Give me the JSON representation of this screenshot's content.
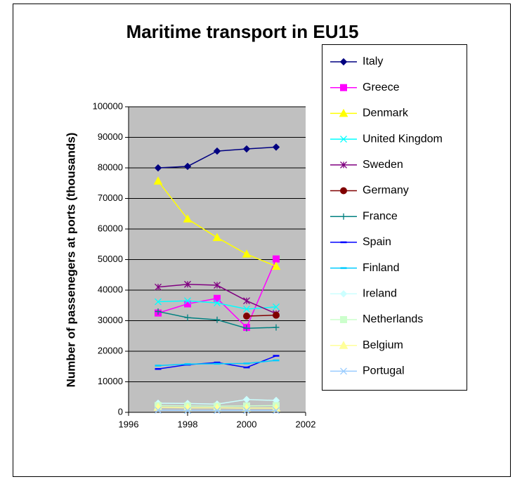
{
  "chart_data": {
    "type": "line",
    "title": "Maritime transport in EU15",
    "y_label": "Number of passenegers at ports (thousands)",
    "x": [
      1997,
      1998,
      1999,
      2000,
      2001
    ],
    "xlim": [
      1996,
      2002
    ],
    "xticks": [
      1996,
      1998,
      2000,
      2002
    ],
    "ylim": [
      0,
      100000
    ],
    "yticks": [
      0,
      10000,
      20000,
      30000,
      40000,
      50000,
      60000,
      70000,
      80000,
      90000,
      100000
    ],
    "grid": true,
    "legend": "right",
    "series": [
      {
        "name": "Italy",
        "color": "#000080",
        "marker": "diamond",
        "values": [
          80000,
          80500,
          85500,
          86200,
          86800
        ]
      },
      {
        "name": "Greece",
        "color": "#FF00FF",
        "marker": "square",
        "values": [
          32500,
          35500,
          37300,
          27800,
          50200
        ]
      },
      {
        "name": "Denmark",
        "color": "#FFFF00",
        "marker": "triangle",
        "values": [
          75700,
          63300,
          57200,
          51800,
          47800
        ]
      },
      {
        "name": "United Kingdom",
        "color": "#00FFFF",
        "marker": "x",
        "values": [
          36200,
          36500,
          35800,
          33800,
          34500
        ]
      },
      {
        "name": "Sweden",
        "color": "#800080",
        "marker": "star",
        "values": [
          41000,
          41900,
          41600,
          36500,
          32300
        ]
      },
      {
        "name": "Germany",
        "color": "#800000",
        "marker": "circle",
        "values": [
          null,
          null,
          null,
          31500,
          31800
        ]
      },
      {
        "name": "France",
        "color": "#008080",
        "marker": "plus",
        "values": [
          33000,
          31000,
          30300,
          27500,
          27800
        ]
      },
      {
        "name": "Spain",
        "color": "#0000FF",
        "marker": "dash",
        "values": [
          14200,
          15600,
          16300,
          14700,
          18500
        ]
      },
      {
        "name": "Finland",
        "color": "#00CCFF",
        "marker": "dash",
        "values": [
          15300,
          15800,
          15900,
          16000,
          17000
        ]
      },
      {
        "name": "Ireland",
        "color": "#CCFFFF",
        "marker": "diamond",
        "values": [
          3000,
          2900,
          2700,
          4200,
          3900
        ]
      },
      {
        "name": "Netherlands",
        "color": "#CCFFCC",
        "marker": "square",
        "values": [
          2200,
          2100,
          2000,
          2100,
          2200
        ]
      },
      {
        "name": "Belgium",
        "color": "#FFFF99",
        "marker": "triangle",
        "values": [
          1700,
          1500,
          1500,
          1400,
          1400
        ]
      },
      {
        "name": "Portugal",
        "color": "#99CCFF",
        "marker": "x",
        "values": [
          700,
          600,
          600,
          600,
          600
        ]
      }
    ]
  }
}
